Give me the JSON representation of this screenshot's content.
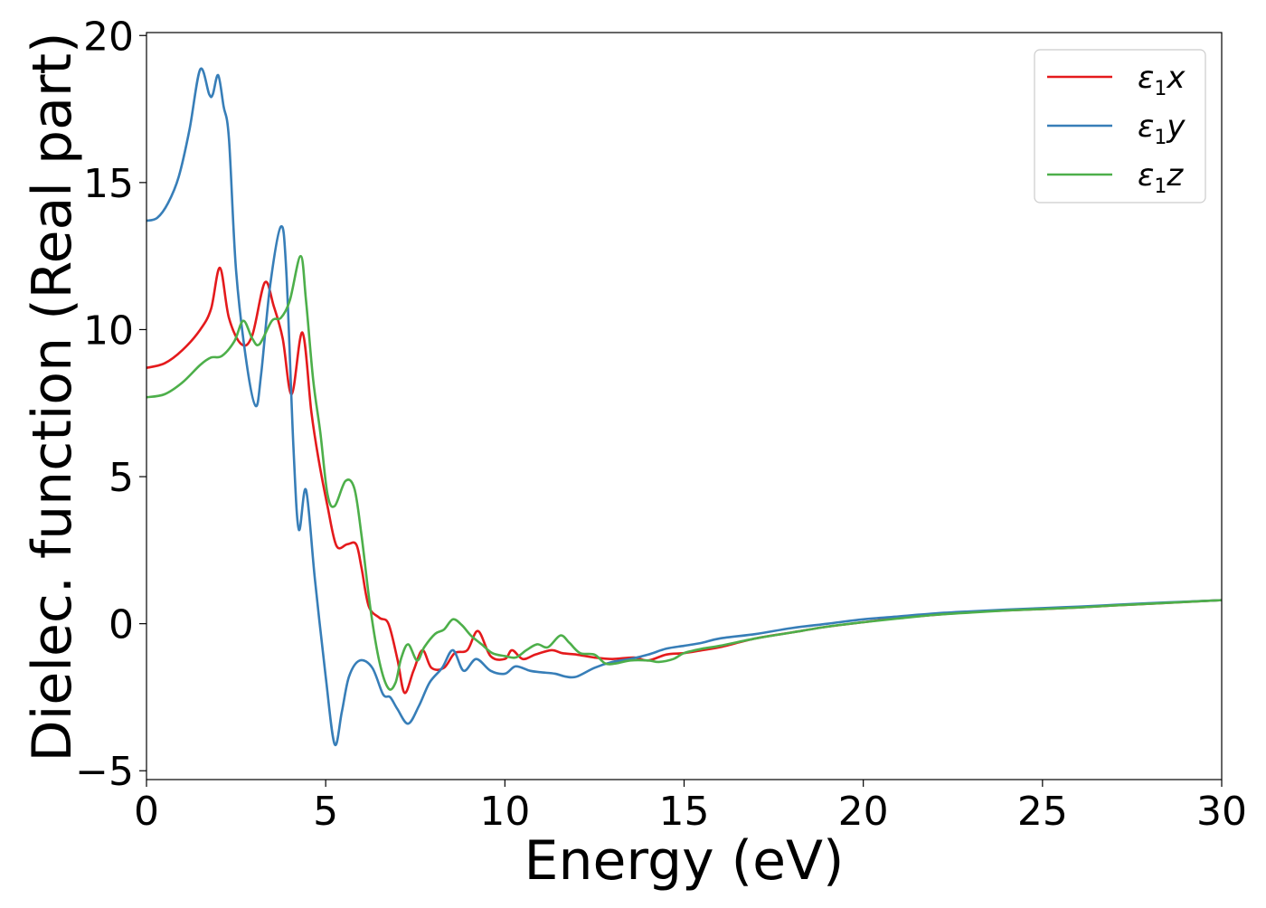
{
  "chart_data": {
    "type": "line",
    "title": "",
    "xlabel": "Energy (eV)",
    "ylabel": "Dielec. function (Real part)",
    "xlim": [
      0,
      30
    ],
    "ylim": [
      -5.3,
      20.1
    ],
    "xticks": [
      0,
      5,
      10,
      15,
      20,
      25,
      30
    ],
    "xtick_labels": [
      "0",
      "5",
      "10",
      "15",
      "20",
      "25",
      "30"
    ],
    "yticks": [
      -5,
      0,
      5,
      10,
      15,
      20
    ],
    "ytick_labels": [
      "−5",
      "0",
      "5",
      "10",
      "15",
      "20"
    ],
    "grid": false,
    "legend_position": "top-right",
    "series": [
      {
        "name": "ε1x",
        "legend": {
          "symbol": "ε",
          "sub": "1",
          "suffix": "x"
        },
        "color": "#e41a1c",
        "points": [
          [
            0,
            8.7
          ],
          [
            0.5,
            8.85
          ],
          [
            1.0,
            9.3
          ],
          [
            1.5,
            10.0
          ],
          [
            1.8,
            10.7
          ],
          [
            2.05,
            12.1
          ],
          [
            2.3,
            10.4
          ],
          [
            2.65,
            9.5
          ],
          [
            2.95,
            9.8
          ],
          [
            3.3,
            11.6
          ],
          [
            3.55,
            10.8
          ],
          [
            3.8,
            9.7
          ],
          [
            4.05,
            7.8
          ],
          [
            4.35,
            9.9
          ],
          [
            4.6,
            7.2
          ],
          [
            4.8,
            5.6
          ],
          [
            5.05,
            4.0
          ],
          [
            5.3,
            2.65
          ],
          [
            5.6,
            2.7
          ],
          [
            5.85,
            2.7
          ],
          [
            6.0,
            1.9
          ],
          [
            6.2,
            0.6
          ],
          [
            6.5,
            0.2
          ],
          [
            6.75,
            0.0
          ],
          [
            7.0,
            -1.2
          ],
          [
            7.2,
            -2.35
          ],
          [
            7.45,
            -1.6
          ],
          [
            7.7,
            -0.9
          ],
          [
            7.95,
            -1.5
          ],
          [
            8.3,
            -1.5
          ],
          [
            8.6,
            -1.0
          ],
          [
            8.95,
            -0.9
          ],
          [
            9.25,
            -0.25
          ],
          [
            9.6,
            -1.1
          ],
          [
            10.0,
            -1.2
          ],
          [
            10.2,
            -0.9
          ],
          [
            10.5,
            -1.2
          ],
          [
            10.85,
            -1.05
          ],
          [
            11.3,
            -0.9
          ],
          [
            11.6,
            -1.0
          ],
          [
            12.0,
            -1.05
          ],
          [
            12.5,
            -1.15
          ],
          [
            13.0,
            -1.2
          ],
          [
            13.6,
            -1.15
          ],
          [
            14.0,
            -1.25
          ],
          [
            14.5,
            -1.05
          ],
          [
            15.0,
            -1.0
          ],
          [
            15.5,
            -0.9
          ],
          [
            16.0,
            -0.8
          ],
          [
            17.0,
            -0.5
          ],
          [
            18.0,
            -0.3
          ],
          [
            19.0,
            -0.1
          ],
          [
            20.0,
            0.05
          ],
          [
            21.0,
            0.2
          ],
          [
            22.0,
            0.3
          ],
          [
            23.0,
            0.4
          ],
          [
            24.0,
            0.45
          ],
          [
            25.0,
            0.5
          ],
          [
            26.0,
            0.55
          ],
          [
            27.0,
            0.62
          ],
          [
            28.0,
            0.68
          ],
          [
            29.0,
            0.74
          ],
          [
            30.0,
            0.8
          ]
        ]
      },
      {
        "name": "ε1y",
        "legend": {
          "symbol": "ε",
          "sub": "1",
          "suffix": "y"
        },
        "color": "#377eb8",
        "points": [
          [
            0,
            13.7
          ],
          [
            0.3,
            13.8
          ],
          [
            0.6,
            14.3
          ],
          [
            0.9,
            15.2
          ],
          [
            1.2,
            16.8
          ],
          [
            1.5,
            18.85
          ],
          [
            1.75,
            18.0
          ],
          [
            1.85,
            18.0
          ],
          [
            2.0,
            18.65
          ],
          [
            2.15,
            17.6
          ],
          [
            2.3,
            16.5
          ],
          [
            2.5,
            12.0
          ],
          [
            2.8,
            8.8
          ],
          [
            3.05,
            7.4
          ],
          [
            3.2,
            8.5
          ],
          [
            3.45,
            11.5
          ],
          [
            3.75,
            13.5
          ],
          [
            3.9,
            12.0
          ],
          [
            4.1,
            6.0
          ],
          [
            4.25,
            3.2
          ],
          [
            4.45,
            4.55
          ],
          [
            4.7,
            1.5
          ],
          [
            5.0,
            -1.8
          ],
          [
            5.25,
            -4.1
          ],
          [
            5.45,
            -3.0
          ],
          [
            5.65,
            -1.8
          ],
          [
            5.95,
            -1.25
          ],
          [
            6.3,
            -1.5
          ],
          [
            6.6,
            -2.4
          ],
          [
            6.8,
            -2.5
          ],
          [
            7.0,
            -2.9
          ],
          [
            7.3,
            -3.4
          ],
          [
            7.6,
            -2.8
          ],
          [
            7.9,
            -2.0
          ],
          [
            8.25,
            -1.5
          ],
          [
            8.55,
            -0.9
          ],
          [
            8.85,
            -1.6
          ],
          [
            9.2,
            -1.2
          ],
          [
            9.6,
            -1.6
          ],
          [
            10.0,
            -1.7
          ],
          [
            10.3,
            -1.45
          ],
          [
            10.7,
            -1.6
          ],
          [
            11.0,
            -1.65
          ],
          [
            11.4,
            -1.7
          ],
          [
            11.7,
            -1.8
          ],
          [
            12.0,
            -1.8
          ],
          [
            12.5,
            -1.5
          ],
          [
            13.0,
            -1.3
          ],
          [
            13.5,
            -1.2
          ],
          [
            14.0,
            -1.05
          ],
          [
            14.5,
            -0.85
          ],
          [
            15.0,
            -0.75
          ],
          [
            15.5,
            -0.65
          ],
          [
            16.0,
            -0.5
          ],
          [
            17.0,
            -0.35
          ],
          [
            18.0,
            -0.15
          ],
          [
            19.0,
            0.0
          ],
          [
            20.0,
            0.15
          ],
          [
            21.0,
            0.25
          ],
          [
            22.0,
            0.35
          ],
          [
            23.0,
            0.42
          ],
          [
            24.0,
            0.48
          ],
          [
            25.0,
            0.53
          ],
          [
            26.0,
            0.58
          ],
          [
            27.0,
            0.64
          ],
          [
            28.0,
            0.7
          ],
          [
            29.0,
            0.75
          ],
          [
            30.0,
            0.8
          ]
        ]
      },
      {
        "name": "ε1z",
        "legend": {
          "symbol": "ε",
          "sub": "1",
          "suffix": "z"
        },
        "color": "#4daf4a",
        "points": [
          [
            0,
            7.7
          ],
          [
            0.5,
            7.8
          ],
          [
            1.0,
            8.2
          ],
          [
            1.5,
            8.8
          ],
          [
            1.8,
            9.05
          ],
          [
            2.1,
            9.1
          ],
          [
            2.45,
            9.6
          ],
          [
            2.7,
            10.3
          ],
          [
            2.95,
            9.7
          ],
          [
            3.15,
            9.5
          ],
          [
            3.5,
            10.3
          ],
          [
            3.75,
            10.4
          ],
          [
            4.0,
            11.0
          ],
          [
            4.3,
            12.5
          ],
          [
            4.45,
            11.0
          ],
          [
            4.65,
            8.3
          ],
          [
            4.85,
            6.5
          ],
          [
            5.05,
            4.4
          ],
          [
            5.25,
            4.0
          ],
          [
            5.55,
            4.85
          ],
          [
            5.8,
            4.6
          ],
          [
            6.0,
            3.0
          ],
          [
            6.25,
            0.5
          ],
          [
            6.5,
            -1.3
          ],
          [
            6.75,
            -2.2
          ],
          [
            6.95,
            -2.0
          ],
          [
            7.1,
            -1.2
          ],
          [
            7.3,
            -0.7
          ],
          [
            7.55,
            -1.25
          ],
          [
            7.75,
            -0.8
          ],
          [
            8.05,
            -0.35
          ],
          [
            8.3,
            -0.2
          ],
          [
            8.55,
            0.15
          ],
          [
            8.8,
            -0.05
          ],
          [
            9.05,
            -0.4
          ],
          [
            9.35,
            -0.7
          ],
          [
            9.65,
            -1.0
          ],
          [
            10.0,
            -1.1
          ],
          [
            10.3,
            -1.15
          ],
          [
            10.6,
            -0.9
          ],
          [
            10.9,
            -0.7
          ],
          [
            11.2,
            -0.8
          ],
          [
            11.55,
            -0.4
          ],
          [
            11.8,
            -0.65
          ],
          [
            12.1,
            -1.0
          ],
          [
            12.5,
            -1.05
          ],
          [
            12.8,
            -1.35
          ],
          [
            13.1,
            -1.35
          ],
          [
            13.5,
            -1.25
          ],
          [
            14.0,
            -1.25
          ],
          [
            14.3,
            -1.3
          ],
          [
            14.7,
            -1.2
          ],
          [
            15.0,
            -1.0
          ],
          [
            15.5,
            -0.85
          ],
          [
            16.0,
            -0.75
          ],
          [
            17.0,
            -0.5
          ],
          [
            18.0,
            -0.3
          ],
          [
            19.0,
            -0.1
          ],
          [
            20.0,
            0.05
          ],
          [
            21.0,
            0.18
          ],
          [
            22.0,
            0.3
          ],
          [
            23.0,
            0.38
          ],
          [
            24.0,
            0.45
          ],
          [
            25.0,
            0.5
          ],
          [
            26.0,
            0.55
          ],
          [
            27.0,
            0.62
          ],
          [
            28.0,
            0.68
          ],
          [
            29.0,
            0.74
          ],
          [
            30.0,
            0.8
          ]
        ]
      }
    ]
  }
}
